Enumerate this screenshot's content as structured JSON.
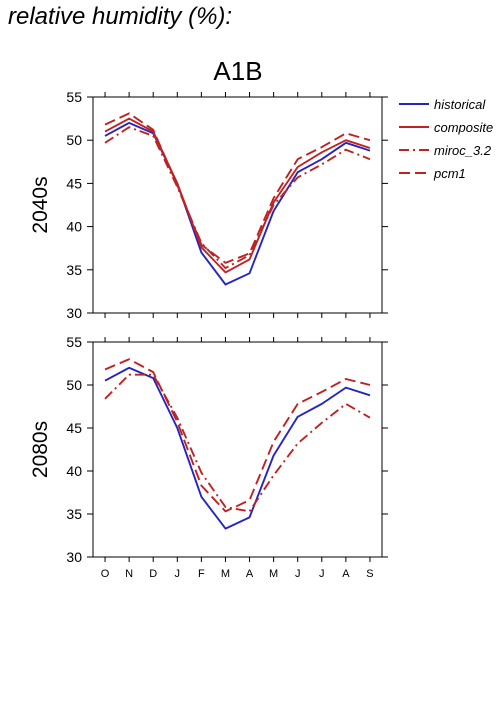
{
  "page_title": "relative humidity (%):",
  "figure_title": "A1B",
  "legend": [
    {
      "label": "historical",
      "color": "#2525c0",
      "dash": "solid"
    },
    {
      "label": "composite",
      "color": "#c02222",
      "dash": "solid"
    },
    {
      "label": "miroc_3.2",
      "color": "#c02222",
      "dash": "dashdot"
    },
    {
      "label": "pcm1",
      "color": "#c02222",
      "dash": "dash"
    }
  ],
  "chart_data": [
    {
      "type": "line",
      "title": "A1B",
      "ylabel": "2040s",
      "xlabel": "",
      "categories": [
        "O",
        "N",
        "D",
        "J",
        "F",
        "M",
        "A",
        "M",
        "J",
        "J",
        "A",
        "S"
      ],
      "ylim": [
        30,
        55
      ],
      "yticks": [
        30,
        35,
        40,
        45,
        50,
        55
      ],
      "series": [
        {
          "name": "historical",
          "color": "#2525c0",
          "dash": "solid",
          "values": [
            50.5,
            52.0,
            50.8,
            45.0,
            37.0,
            33.3,
            34.6,
            41.8,
            46.3,
            47.8,
            49.7,
            48.8
          ]
        },
        {
          "name": "composite",
          "color": "#c02222",
          "dash": "solid",
          "values": [
            51.0,
            52.5,
            51.0,
            45.0,
            37.6,
            34.7,
            36.2,
            42.8,
            46.9,
            48.6,
            50.0,
            49.1
          ]
        },
        {
          "name": "miroc_3.2",
          "color": "#c02222",
          "dash": "dashdot",
          "values": [
            49.7,
            51.5,
            50.5,
            44.6,
            38.1,
            35.2,
            36.7,
            42.5,
            45.7,
            47.2,
            48.9,
            47.8
          ]
        },
        {
          "name": "pcm1",
          "color": "#c02222",
          "dash": "dash",
          "values": [
            51.8,
            53.1,
            51.2,
            44.8,
            37.9,
            35.8,
            36.9,
            43.3,
            47.8,
            49.2,
            50.8,
            50.0
          ]
        }
      ]
    },
    {
      "type": "line",
      "ylabel": "2080s",
      "xlabel": "",
      "categories": [
        "O",
        "N",
        "D",
        "J",
        "F",
        "M",
        "A",
        "M",
        "J",
        "J",
        "A",
        "S"
      ],
      "ylim": [
        30,
        55
      ],
      "yticks": [
        30,
        35,
        40,
        45,
        50,
        55
      ],
      "series": [
        {
          "name": "historical",
          "color": "#2525c0",
          "dash": "solid",
          "values": [
            50.5,
            52.0,
            50.8,
            45.0,
            37.0,
            33.3,
            34.6,
            41.8,
            46.3,
            47.8,
            49.7,
            48.8
          ]
        },
        {
          "name": "miroc_3.2",
          "color": "#c02222",
          "dash": "dashdot",
          "values": [
            48.4,
            51.2,
            51.2,
            46.2,
            39.8,
            35.8,
            35.3,
            39.5,
            43.2,
            45.6,
            47.8,
            46.2
          ]
        },
        {
          "name": "pcm1",
          "color": "#c02222",
          "dash": "dash",
          "values": [
            51.8,
            53.0,
            51.5,
            45.7,
            38.3,
            35.3,
            36.6,
            43.4,
            47.8,
            49.2,
            50.7,
            50.0
          ]
        }
      ]
    }
  ]
}
